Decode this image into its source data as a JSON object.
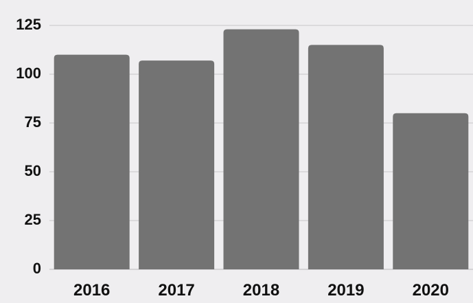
{
  "chart_data": {
    "type": "bar",
    "title": "",
    "xlabel": "",
    "ylabel": "",
    "categories": [
      "2016",
      "2017",
      "2018",
      "2019",
      "2020"
    ],
    "values": [
      110,
      107,
      123,
      115,
      80
    ],
    "ylim": [
      0,
      125
    ],
    "yticks": [
      {
        "value": 0,
        "label": "0"
      },
      {
        "value": 25,
        "label": "25"
      },
      {
        "value": 50,
        "label": "50"
      },
      {
        "value": 75,
        "label": "75"
      },
      {
        "value": 100,
        "label": "100"
      },
      {
        "value": 125,
        "label": "125"
      }
    ],
    "grid": true,
    "legend": "none",
    "colors": {
      "bar": "#737373",
      "background": "#efeef0",
      "grid": "#c7c7c9",
      "text": "#111111"
    }
  }
}
